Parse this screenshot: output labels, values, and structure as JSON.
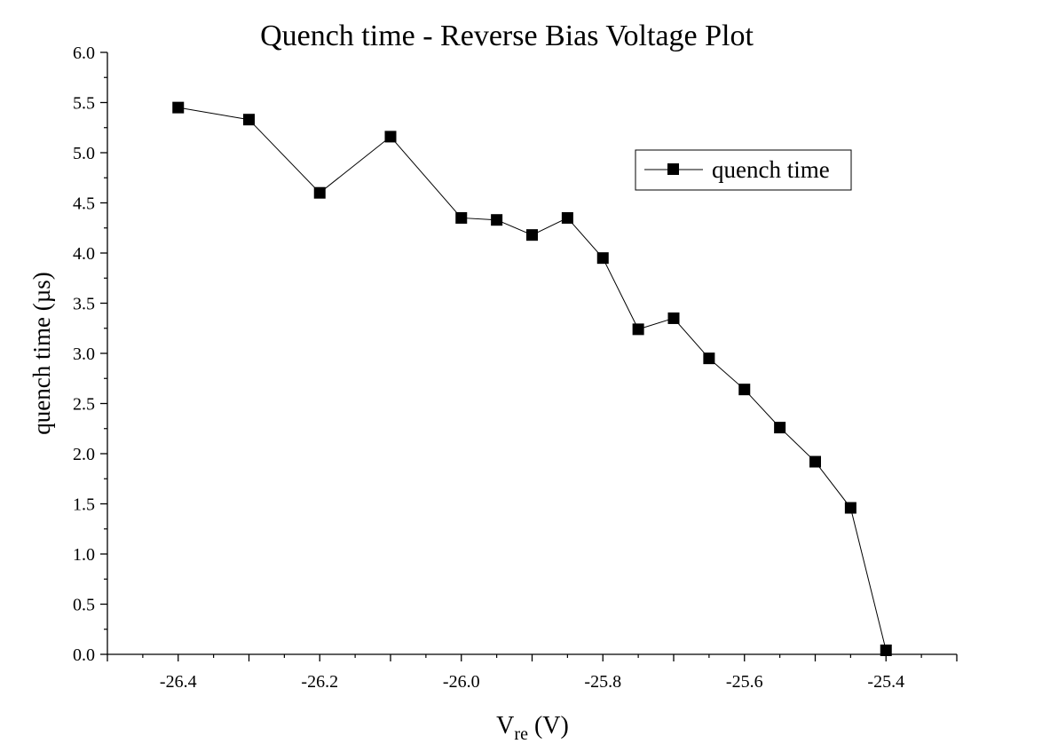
{
  "chart_data": {
    "type": "line",
    "title": "Quench time - Reverse Bias Voltage Plot",
    "xlabel_main": "V",
    "xlabel_sub": "re",
    "xlabel_unit": " (V)",
    "ylabel": "quench time (µs)",
    "xlim": [
      -26.5,
      -25.3
    ],
    "ylim": [
      0,
      6.0
    ],
    "grid": false,
    "legend_position": "top-right",
    "x_ticks": [
      -26.4,
      -26.2,
      -26.0,
      -25.8,
      -25.6,
      -25.4
    ],
    "x_tick_labels": [
      "-26.4",
      "-26.2",
      "-26.0",
      "-25.8",
      "-25.6",
      "-25.4"
    ],
    "y_ticks": [
      0,
      0.5,
      1,
      1.5,
      2,
      2.5,
      3,
      3.5,
      4,
      4.5,
      5,
      5.5,
      6
    ],
    "y_tick_labels": [
      "0.0",
      "0.5",
      "1.0",
      "1.5",
      "2.0",
      "2.5",
      "3.0",
      "3.5",
      "4.0",
      "4.5",
      "5.0",
      "5.5",
      "6.0"
    ],
    "series": [
      {
        "name": "quench time",
        "color": "#000000",
        "marker": "square",
        "x": [
          -26.4,
          -26.3,
          -26.2,
          -26.1,
          -26.0,
          -25.95,
          -25.9,
          -25.85,
          -25.8,
          -25.75,
          -25.7,
          -25.65,
          -25.6,
          -25.55,
          -25.5,
          -25.45,
          -25.4
        ],
        "y": [
          5.45,
          5.33,
          4.6,
          5.16,
          4.35,
          4.33,
          4.18,
          4.35,
          3.95,
          3.24,
          3.35,
          2.95,
          2.64,
          2.26,
          1.92,
          1.46,
          0.04
        ]
      }
    ]
  }
}
